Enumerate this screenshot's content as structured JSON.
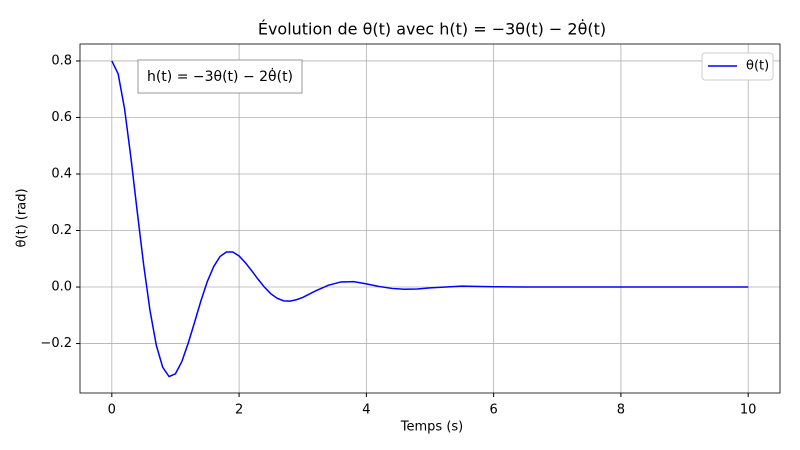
{
  "chart_data": {
    "type": "line",
    "title": "Évolution de θ(t) avec h(t) = −3θ(t) − 2θ̇(t)",
    "xlabel": "Temps (s)",
    "ylabel": "θ(t) (rad)",
    "annotation": "h(t) = −3θ(t) − 2θ̇(t)",
    "x": [
      0,
      0.1,
      0.2,
      0.3,
      0.4,
      0.5,
      0.6,
      0.7,
      0.8,
      0.9,
      1.0,
      1.1,
      1.2,
      1.3,
      1.4,
      1.5,
      1.6,
      1.7,
      1.8,
      1.9,
      2.0,
      2.1,
      2.2,
      2.3,
      2.4,
      2.5,
      2.6,
      2.7,
      2.8,
      2.9,
      3.0,
      3.2,
      3.4,
      3.6,
      3.8,
      4.0,
      4.2,
      4.4,
      4.6,
      4.8,
      5.0,
      5.5,
      6.0,
      6.5,
      7,
      8,
      9,
      10
    ],
    "series": [
      {
        "name": "θ(t)",
        "color": "#0000ff",
        "values": [
          0.8,
          0.754,
          0.631,
          0.458,
          0.266,
          0.079,
          -0.083,
          -0.207,
          -0.284,
          -0.317,
          -0.307,
          -0.264,
          -0.199,
          -0.125,
          -0.049,
          0.019,
          0.072,
          0.108,
          0.124,
          0.124,
          0.11,
          0.086,
          0.057,
          0.027,
          -0.001,
          -0.024,
          -0.04,
          -0.049,
          -0.05,
          -0.045,
          -0.037,
          -0.014,
          0.006,
          0.018,
          0.019,
          0.011,
          0.002,
          -0.005,
          -0.008,
          -0.007,
          -0.003,
          0.003,
          0.001,
          0,
          0,
          0,
          0,
          0
        ]
      }
    ],
    "xlim": [
      -0.5,
      10.5
    ],
    "ylim": [
      -0.375,
      0.86
    ],
    "xticks": [
      0,
      2,
      4,
      6,
      8,
      10
    ],
    "yticks": [
      {
        "value": -0.2,
        "label": "−0.2"
      },
      {
        "value": 0,
        "label": "0.0"
      },
      0.2,
      0.4,
      0.6,
      0.8
    ],
    "grid": true,
    "legend": "upper right"
  }
}
